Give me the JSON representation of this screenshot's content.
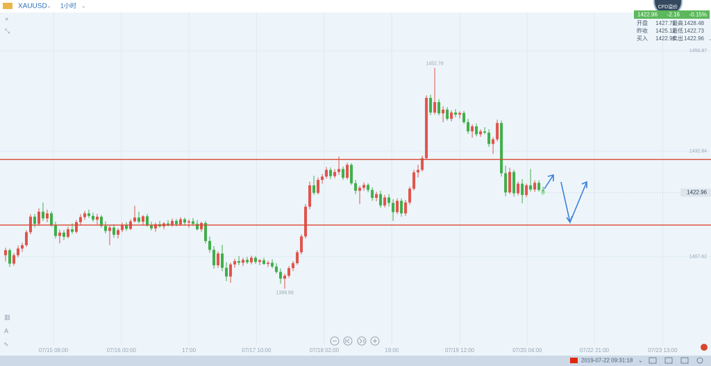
{
  "symbol": "XAUUSD",
  "interval": "1小时",
  "badge": "CFD溢价",
  "quote": {
    "price": "1422.96",
    "change": "-2.16",
    "change_pct": "-0.15%",
    "rows": [
      [
        "开盘",
        "1427.71",
        "最高",
        "1428.48"
      ],
      [
        "昨收",
        "1425.12",
        "最低",
        "1422.73"
      ],
      [
        "买入",
        "1422.96",
        "卖出",
        "1422.96"
      ]
    ]
  },
  "status_time": "2019-07-22 09:31:18",
  "chart_data": {
    "type": "candlestick",
    "up_color": "#e0534a",
    "down_color": "#3fae49",
    "ylim": [
      1386.5,
      1469
    ],
    "yticks": [
      1456.87,
      1432.84,
      1407.62
    ],
    "xlim": [
      -1.33,
      169.3
    ],
    "xticks": [
      {
        "value": 11.5,
        "label": "07/15 08:00"
      },
      {
        "value": 27.8,
        "label": "07/16 00:00"
      },
      {
        "value": 44,
        "label": "17:00"
      },
      {
        "value": 60.2,
        "label": "07/17 10:00"
      },
      {
        "value": 76.5,
        "label": "07/18 02:00"
      },
      {
        "value": 92.7,
        "label": "19:00"
      },
      {
        "value": 109,
        "label": "07/19 12:00"
      },
      {
        "value": 125.2,
        "label": "07/20 04:00"
      },
      {
        "value": 141.3,
        "label": "07/22 21:00"
      },
      {
        "value": 157.7,
        "label": "07/23 13:00"
      }
    ],
    "grid": true,
    "hlines": [
      1430.9,
      1415.2
    ],
    "hline_color": "#d9462f",
    "last_price": 1422.96,
    "annotations": [
      {
        "index": 103,
        "value": 1452.78
      },
      {
        "index": 67,
        "value": 1399.99
      }
    ],
    "ohlc": [
      [
        1408.0,
        1409.8,
        1406.5,
        1409.2
      ],
      [
        1409.2,
        1409.6,
        1405.2,
        1406.0
      ],
      [
        1406.0,
        1408.5,
        1405.5,
        1408.0
      ],
      [
        1408.0,
        1410.3,
        1407.5,
        1409.6
      ],
      [
        1409.6,
        1411.0,
        1408.8,
        1410.4
      ],
      [
        1410.4,
        1414.0,
        1410.0,
        1413.5
      ],
      [
        1413.5,
        1417.8,
        1413.0,
        1417.2
      ],
      [
        1417.2,
        1417.9,
        1414.6,
        1415.5
      ],
      [
        1415.5,
        1419.2,
        1415.0,
        1418.4
      ],
      [
        1418.4,
        1420.6,
        1416.2,
        1416.8
      ],
      [
        1416.8,
        1418.9,
        1415.9,
        1418.0
      ],
      [
        1418.0,
        1418.5,
        1414.8,
        1415.3
      ],
      [
        1415.3,
        1416.0,
        1412.0,
        1412.6
      ],
      [
        1412.6,
        1414.1,
        1410.8,
        1413.4
      ],
      [
        1413.4,
        1414.0,
        1411.6,
        1412.4
      ],
      [
        1412.4,
        1414.8,
        1412.0,
        1414.2
      ],
      [
        1414.2,
        1415.6,
        1413.1,
        1413.6
      ],
      [
        1413.6,
        1416.4,
        1413.2,
        1415.9
      ],
      [
        1415.9,
        1417.8,
        1415.2,
        1417.1
      ],
      [
        1417.1,
        1418.6,
        1416.4,
        1418.0
      ],
      [
        1418.0,
        1418.9,
        1416.9,
        1417.4
      ],
      [
        1417.4,
        1418.2,
        1416.0,
        1416.5
      ],
      [
        1416.5,
        1417.9,
        1415.4,
        1417.2
      ],
      [
        1417.2,
        1417.6,
        1414.6,
        1415.0
      ],
      [
        1415.0,
        1416.1,
        1413.2,
        1413.8
      ],
      [
        1413.8,
        1415.2,
        1410.4,
        1414.6
      ],
      [
        1414.6,
        1415.4,
        1412.2,
        1412.9
      ],
      [
        1412.9,
        1414.5,
        1412.0,
        1414.0
      ],
      [
        1414.0,
        1415.8,
        1413.5,
        1415.2
      ],
      [
        1415.2,
        1415.9,
        1413.8,
        1414.3
      ],
      [
        1414.3,
        1416.6,
        1414.0,
        1416.1
      ],
      [
        1416.1,
        1419.8,
        1415.8,
        1417.0
      ],
      [
        1417.0,
        1418.4,
        1415.6,
        1416.0
      ],
      [
        1416.0,
        1417.6,
        1415.2,
        1417.3
      ],
      [
        1417.3,
        1417.9,
        1414.8,
        1415.1
      ],
      [
        1415.1,
        1416.0,
        1413.9,
        1414.4
      ],
      [
        1414.4,
        1415.8,
        1413.6,
        1415.4
      ],
      [
        1415.4,
        1416.2,
        1414.6,
        1414.9
      ],
      [
        1414.9,
        1415.9,
        1414.2,
        1415.6
      ],
      [
        1415.6,
        1416.4,
        1414.9,
        1415.2
      ],
      [
        1415.2,
        1416.8,
        1414.8,
        1416.2
      ],
      [
        1416.2,
        1416.7,
        1414.9,
        1415.4
      ],
      [
        1415.4,
        1417.1,
        1415.0,
        1416.6
      ],
      [
        1416.6,
        1417.0,
        1415.3,
        1415.8
      ],
      [
        1415.8,
        1416.6,
        1414.6,
        1416.1
      ],
      [
        1416.1,
        1416.9,
        1415.0,
        1415.5
      ],
      [
        1415.5,
        1416.4,
        1413.9,
        1414.2
      ],
      [
        1414.2,
        1416.0,
        1413.6,
        1415.7
      ],
      [
        1415.7,
        1416.2,
        1410.8,
        1411.4
      ],
      [
        1411.4,
        1412.5,
        1408.6,
        1409.3
      ],
      [
        1409.3,
        1410.2,
        1404.8,
        1405.6
      ],
      [
        1405.6,
        1408.9,
        1405.0,
        1408.4
      ],
      [
        1408.4,
        1410.5,
        1404.2,
        1405.0
      ],
      [
        1405.0,
        1406.3,
        1401.8,
        1402.9
      ],
      [
        1402.9,
        1406.2,
        1401.4,
        1405.8
      ],
      [
        1405.8,
        1407.2,
        1405.0,
        1406.6
      ],
      [
        1406.6,
        1407.8,
        1405.6,
        1406.2
      ],
      [
        1406.2,
        1407.4,
        1405.4,
        1406.9
      ],
      [
        1406.9,
        1407.6,
        1405.9,
        1406.3
      ],
      [
        1406.3,
        1407.9,
        1405.8,
        1407.4
      ],
      [
        1407.4,
        1407.8,
        1405.9,
        1406.4
      ],
      [
        1406.4,
        1407.1,
        1405.6,
        1406.8
      ],
      [
        1406.8,
        1407.4,
        1405.7,
        1405.9
      ],
      [
        1405.9,
        1406.7,
        1405.2,
        1406.2
      ],
      [
        1406.2,
        1407.0,
        1404.9,
        1405.3
      ],
      [
        1405.3,
        1406.1,
        1403.6,
        1404.0
      ],
      [
        1404.0,
        1404.8,
        1401.2,
        1402.4
      ],
      [
        1402.4,
        1403.6,
        1399.99,
        1403.1
      ],
      [
        1403.1,
        1405.4,
        1402.6,
        1404.9
      ],
      [
        1404.9,
        1406.6,
        1404.2,
        1406.1
      ],
      [
        1406.1,
        1409.2,
        1405.7,
        1408.7
      ],
      [
        1408.7,
        1413.0,
        1408.2,
        1412.5
      ],
      [
        1412.5,
        1420.2,
        1412.0,
        1419.6
      ],
      [
        1419.6,
        1425.6,
        1419.0,
        1424.7
      ],
      [
        1424.7,
        1427.0,
        1422.4,
        1422.9
      ],
      [
        1422.9,
        1426.6,
        1422.5,
        1426.0
      ],
      [
        1426.0,
        1427.4,
        1425.1,
        1426.8
      ],
      [
        1426.8,
        1429.1,
        1426.3,
        1428.4
      ],
      [
        1428.4,
        1429.0,
        1426.2,
        1426.9
      ],
      [
        1426.9,
        1428.6,
        1426.4,
        1427.9
      ],
      [
        1427.9,
        1431.6,
        1427.2,
        1428.6
      ],
      [
        1428.6,
        1429.2,
        1426.0,
        1426.5
      ],
      [
        1426.5,
        1430.1,
        1426.1,
        1429.6
      ],
      [
        1429.6,
        1430.0,
        1424.8,
        1425.2
      ],
      [
        1425.2,
        1426.0,
        1422.6,
        1423.4
      ],
      [
        1423.4,
        1424.6,
        1420.2,
        1424.1
      ],
      [
        1424.1,
        1425.4,
        1423.4,
        1424.8
      ],
      [
        1424.8,
        1425.2,
        1423.0,
        1423.6
      ],
      [
        1423.6,
        1424.2,
        1421.0,
        1421.7
      ],
      [
        1421.7,
        1423.2,
        1420.9,
        1422.6
      ],
      [
        1422.6,
        1423.4,
        1419.3,
        1419.9
      ],
      [
        1419.9,
        1422.4,
        1419.4,
        1421.8
      ],
      [
        1421.8,
        1422.6,
        1419.6,
        1420.5
      ],
      [
        1420.5,
        1421.4,
        1416.2,
        1418.3
      ],
      [
        1418.3,
        1421.6,
        1417.8,
        1421.0
      ],
      [
        1421.0,
        1421.6,
        1417.2,
        1418.0
      ],
      [
        1418.0,
        1421.2,
        1417.4,
        1420.6
      ],
      [
        1420.6,
        1424.4,
        1420.1,
        1423.9
      ],
      [
        1423.9,
        1428.4,
        1423.5,
        1427.8
      ],
      [
        1427.8,
        1429.6,
        1426.6,
        1428.4
      ],
      [
        1428.4,
        1431.8,
        1428.0,
        1431.2
      ],
      [
        1431.2,
        1446.2,
        1430.8,
        1445.6
      ],
      [
        1445.6,
        1446.4,
        1441.5,
        1442.1
      ],
      [
        1442.1,
        1452.78,
        1441.6,
        1444.6
      ],
      [
        1444.6,
        1445.3,
        1441.4,
        1441.9
      ],
      [
        1441.9,
        1443.6,
        1439.8,
        1442.8
      ],
      [
        1442.8,
        1443.4,
        1440.2,
        1440.6
      ],
      [
        1440.6,
        1442.6,
        1440.0,
        1442.1
      ],
      [
        1442.1,
        1442.9,
        1441.0,
        1441.6
      ],
      [
        1441.6,
        1442.4,
        1440.7,
        1442.0
      ],
      [
        1442.0,
        1442.5,
        1439.4,
        1439.8
      ],
      [
        1439.8,
        1440.6,
        1437.0,
        1437.6
      ],
      [
        1437.6,
        1439.3,
        1436.1,
        1438.8
      ],
      [
        1438.8,
        1439.5,
        1436.4,
        1436.9
      ],
      [
        1436.9,
        1438.1,
        1436.3,
        1437.6
      ],
      [
        1437.6,
        1438.6,
        1436.9,
        1437.3
      ],
      [
        1437.3,
        1438.1,
        1433.9,
        1434.6
      ],
      [
        1434.6,
        1436.2,
        1432.2,
        1435.7
      ],
      [
        1435.7,
        1440.4,
        1435.2,
        1439.6
      ],
      [
        1439.6,
        1440.2,
        1426.8,
        1427.6
      ],
      [
        1427.6,
        1429.4,
        1422.1,
        1423.0
      ],
      [
        1423.0,
        1428.9,
        1422.6,
        1427.9
      ],
      [
        1427.9,
        1428.4,
        1422.0,
        1422.8
      ],
      [
        1422.8,
        1425.6,
        1422.3,
        1425.1
      ],
      [
        1425.1,
        1426.2,
        1420.4,
        1422.4
      ],
      [
        1422.4,
        1425.1,
        1421.9,
        1424.7
      ],
      [
        1424.7,
        1428.6,
        1423.2,
        1423.7
      ],
      [
        1423.7,
        1425.9,
        1423.1,
        1425.3
      ],
      [
        1425.3,
        1425.9,
        1423.2,
        1423.6
      ],
      [
        1423.6,
        1424.4,
        1422.73,
        1422.96
      ]
    ]
  }
}
